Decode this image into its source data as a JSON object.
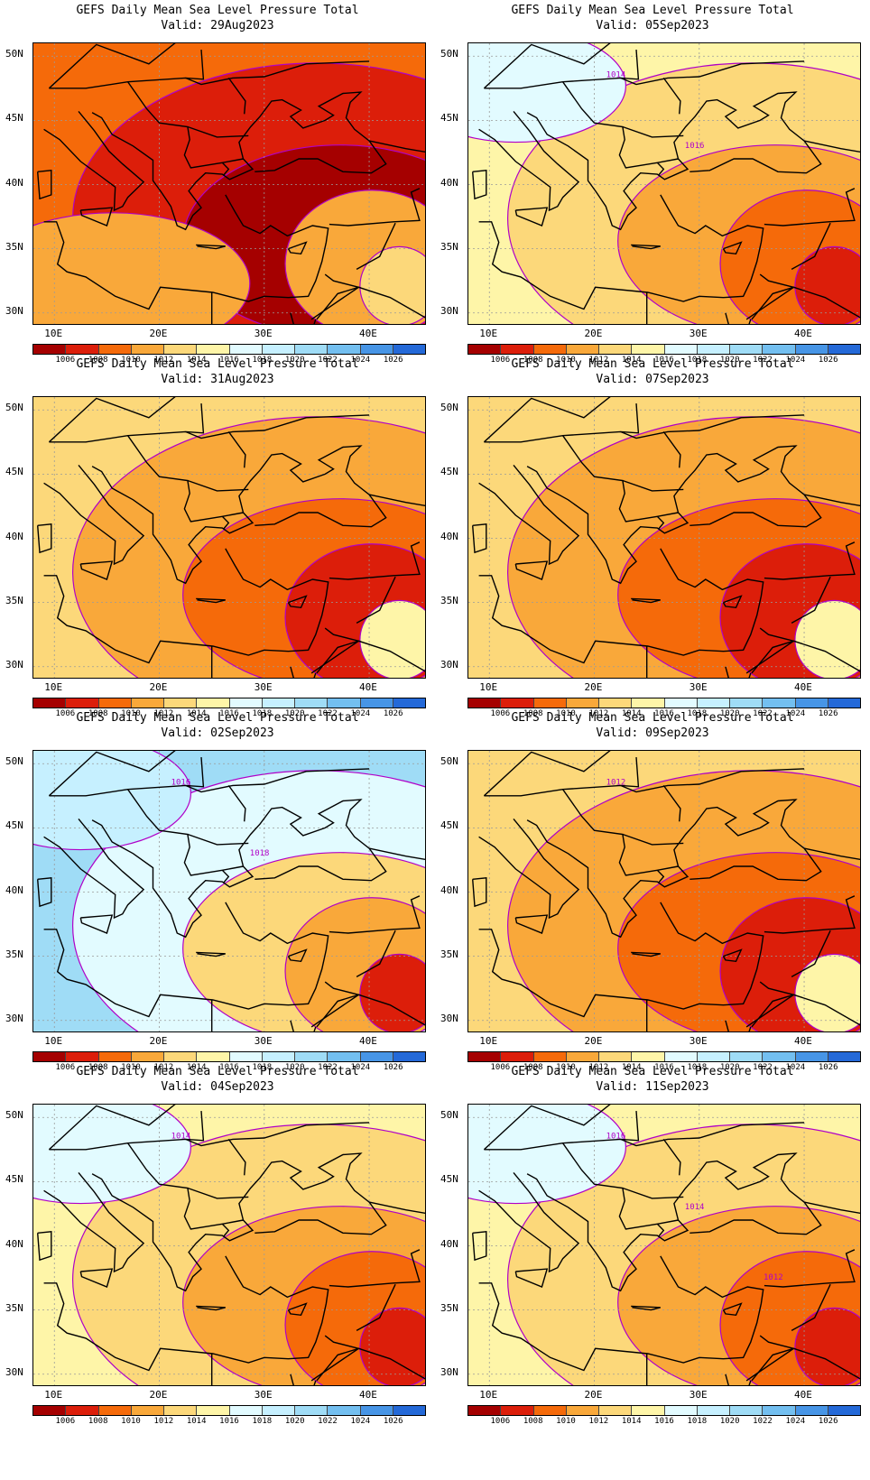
{
  "panel_title": "GEFS Daily Mean Sea Level Pressure Total",
  "panels": [
    {
      "valid": "Valid: 29Aug2023",
      "scheme": "deep",
      "contour_labels": []
    },
    {
      "valid": "Valid: 05Sep2023",
      "scheme": "light",
      "contour_labels": [
        "1014",
        "1016"
      ]
    },
    {
      "valid": "Valid: 31Aug2023",
      "scheme": "mid",
      "contour_labels": []
    },
    {
      "valid": "Valid: 07Sep2023",
      "scheme": "mid",
      "contour_labels": []
    },
    {
      "valid": "Valid: 02Sep2023",
      "scheme": "blue",
      "contour_labels": [
        "1016",
        "1018"
      ]
    },
    {
      "valid": "Valid: 09Sep2023",
      "scheme": "mid",
      "contour_labels": [
        "1012"
      ]
    },
    {
      "valid": "Valid: 04Sep2023",
      "scheme": "light",
      "contour_labels": [
        "1014"
      ]
    },
    {
      "valid": "Valid: 11Sep2023",
      "scheme": "light",
      "contour_labels": [
        "1016",
        "1014",
        "1012"
      ]
    }
  ],
  "lat_labels": [
    "50N",
    "45N",
    "40N",
    "35N",
    "30N"
  ],
  "lon_labels": [
    "10E",
    "20E",
    "30E",
    "40E"
  ],
  "colorbar": {
    "labels": [
      "1006",
      "1008",
      "1010",
      "1012",
      "1014",
      "1016",
      "1018",
      "1020",
      "1022",
      "1024",
      "1026"
    ],
    "colors": [
      "#a50000",
      "#dc1e0a",
      "#f56a0a",
      "#f9a83a",
      "#fcd87a",
      "#fef5a8",
      "#e2fbff",
      "#c6f0ff",
      "#9fdcf6",
      "#73bff0",
      "#4795e6",
      "#2469d8"
    ]
  },
  "contour_color": "#b000c8"
}
